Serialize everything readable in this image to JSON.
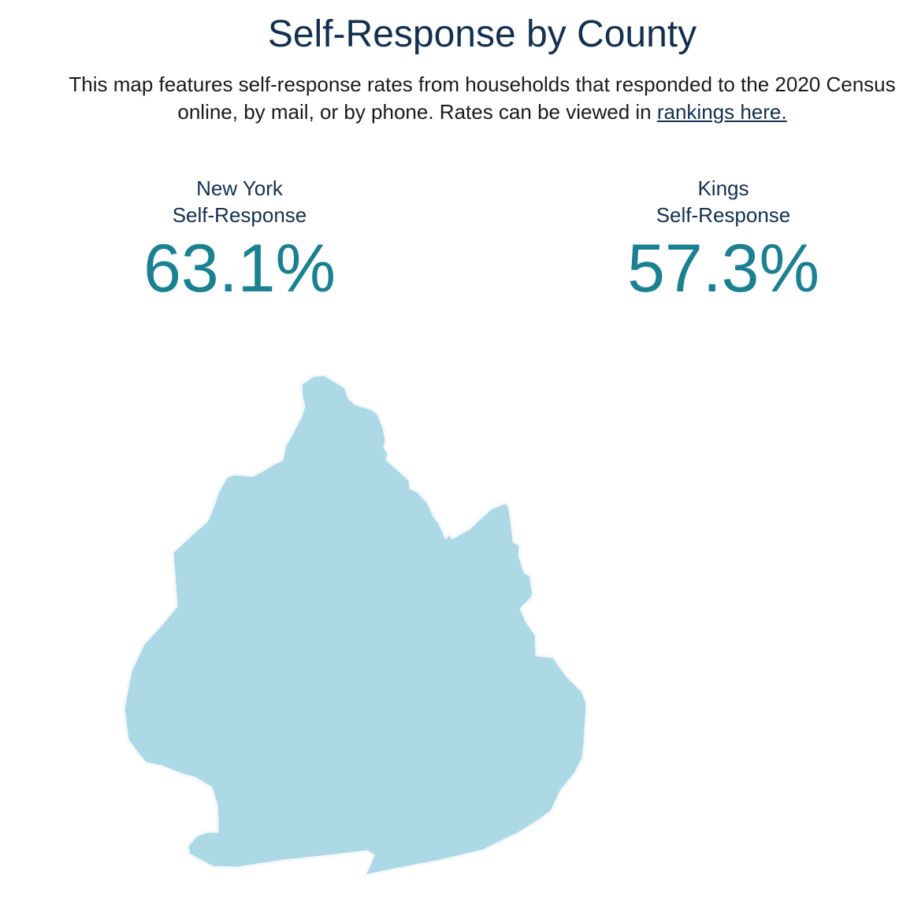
{
  "header": {
    "title": "Self-Response by County",
    "description_text": "This map features self-response rates from households that responded to the 2020 Census online, by mail, or by phone. Rates can be viewed in ",
    "rankings_link": "rankings here."
  },
  "stats": [
    {
      "name": "New York",
      "label": "Self-Response",
      "value": "63.1%"
    },
    {
      "name": "Kings",
      "label": "Self-Response",
      "value": "57.3%"
    }
  ],
  "map": {
    "county": "Kings",
    "fill_color": "#add8e6",
    "stroke_color": "#f3f8fa"
  },
  "colors": {
    "title": "#14304f",
    "value": "#1b8190"
  }
}
